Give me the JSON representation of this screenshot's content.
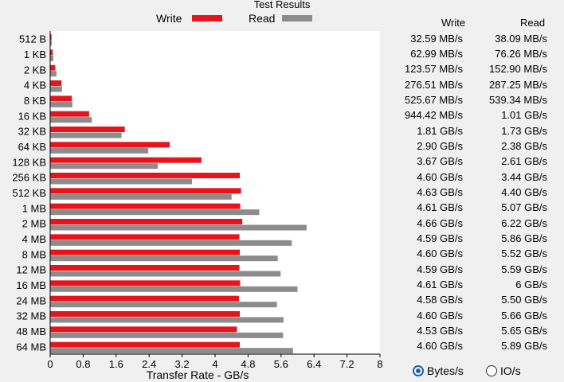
{
  "chart_data": {
    "type": "bar",
    "title": "Test Results",
    "xlabel": "Transfer Rate - GB/s",
    "xlim": [
      0,
      8
    ],
    "xticks": [
      "0",
      "0.8",
      "1.6",
      "2.4",
      "3.2",
      "4",
      "4.8",
      "5.6",
      "6.4",
      "7.2",
      "8"
    ],
    "categories": [
      "512 B",
      "1 KB",
      "2 KB",
      "4 KB",
      "8 KB",
      "16 KB",
      "32 KB",
      "64 KB",
      "128 KB",
      "256 KB",
      "512 KB",
      "1 MB",
      "2 MB",
      "4 MB",
      "8 MB",
      "12 MB",
      "16 MB",
      "24 MB",
      "32 MB",
      "48 MB",
      "64 MB"
    ],
    "series": [
      {
        "name": "Write",
        "color": "#e8141c",
        "values": [
          0.03259,
          0.06299,
          0.12357,
          0.27651,
          0.52567,
          0.94442,
          1.81,
          2.9,
          3.67,
          4.6,
          4.63,
          4.61,
          4.66,
          4.59,
          4.6,
          4.59,
          4.61,
          4.58,
          4.6,
          4.53,
          4.6
        ]
      },
      {
        "name": "Read",
        "color": "#8c8c8c",
        "values": [
          0.03809,
          0.07626,
          0.1529,
          0.28725,
          0.53934,
          1.01,
          1.73,
          2.38,
          2.61,
          3.44,
          4.4,
          5.07,
          6.22,
          5.86,
          5.52,
          5.59,
          6.0,
          5.5,
          5.66,
          5.65,
          5.89
        ]
      }
    ],
    "legend_position": "top-center",
    "grid": false
  },
  "results_table": {
    "headers": [
      "Write",
      "Read"
    ],
    "rows": [
      [
        "32.59 MB/s",
        "38.09 MB/s"
      ],
      [
        "62.99 MB/s",
        "76.26 MB/s"
      ],
      [
        "123.57 MB/s",
        "152.90 MB/s"
      ],
      [
        "276.51 MB/s",
        "287.25 MB/s"
      ],
      [
        "525.67 MB/s",
        "539.34 MB/s"
      ],
      [
        "944.42 MB/s",
        "1.01 GB/s"
      ],
      [
        "1.81 GB/s",
        "1.73 GB/s"
      ],
      [
        "2.90 GB/s",
        "2.38 GB/s"
      ],
      [
        "3.67 GB/s",
        "2.61 GB/s"
      ],
      [
        "4.60 GB/s",
        "3.44 GB/s"
      ],
      [
        "4.63 GB/s",
        "4.40 GB/s"
      ],
      [
        "4.61 GB/s",
        "5.07 GB/s"
      ],
      [
        "4.66 GB/s",
        "6.22 GB/s"
      ],
      [
        "4.59 GB/s",
        "5.86 GB/s"
      ],
      [
        "4.60 GB/s",
        "5.52 GB/s"
      ],
      [
        "4.59 GB/s",
        "5.59 GB/s"
      ],
      [
        "4.61 GB/s",
        "6 GB/s"
      ],
      [
        "4.58 GB/s",
        "5.50 GB/s"
      ],
      [
        "4.60 GB/s",
        "5.66 GB/s"
      ],
      [
        "4.53 GB/s",
        "5.65 GB/s"
      ],
      [
        "4.60 GB/s",
        "5.89 GB/s"
      ]
    ]
  },
  "units_option": {
    "options": [
      "Bytes/s",
      "IO/s"
    ],
    "selected": "Bytes/s"
  }
}
